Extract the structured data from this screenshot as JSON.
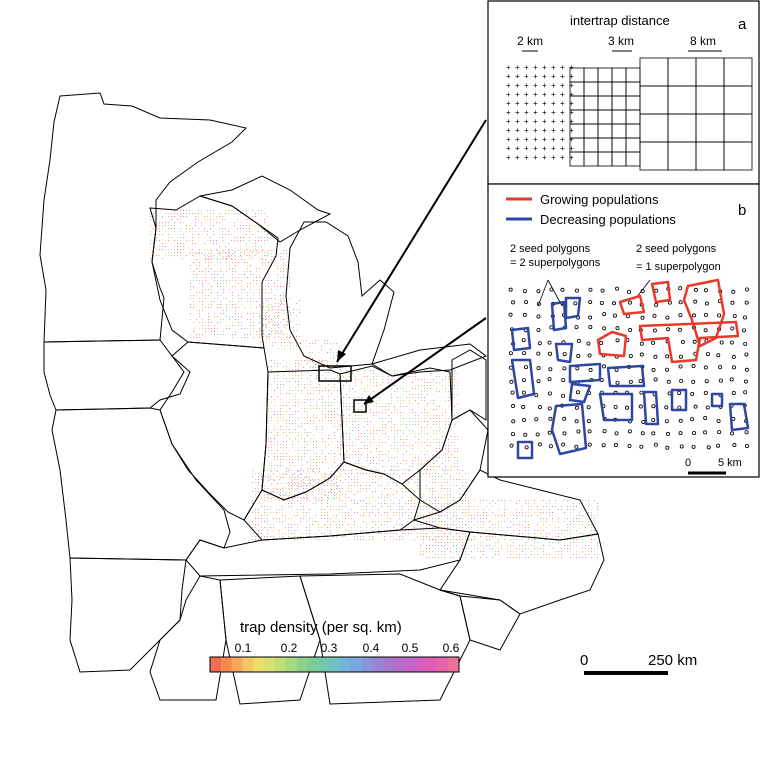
{
  "legend": {
    "title": "trap density (per sq. km)",
    "ticks": [
      "0.1",
      "0.2",
      "0.3",
      "0.4",
      "0.5",
      "0.6"
    ],
    "colors": [
      "#f26d4f",
      "#f58a52",
      "#f5a95a",
      "#f4c765",
      "#eedd6a",
      "#d7e070",
      "#bede76",
      "#a5d97d",
      "#8fd288",
      "#7ccc97",
      "#74c6ad",
      "#72c0c6",
      "#71b6da",
      "#7aa6e1",
      "#8895dd",
      "#9785d7",
      "#a777d0",
      "#b66ccb",
      "#c564c6",
      "#d35fc1",
      "#df5fb8",
      "#e864a9",
      "#ef6f9b"
    ]
  },
  "scale": {
    "zero": "0",
    "end": "250 km"
  },
  "inset_a": {
    "letter": "a",
    "title": "intertrap distance",
    "distances": [
      "2 km",
      "3 km",
      "8 km"
    ]
  },
  "inset_b": {
    "letter": "b",
    "legend_growing": "Growing populations",
    "legend_decreasing": "Decreasing populations",
    "growing_color": "#e8392a",
    "decreasing_color": "#2f47a3",
    "note_left_1": "2 seed polygons",
    "note_left_2": "= 2 superpolygons",
    "note_right_1": "2 seed polygons",
    "note_right_2": "= 1 superpolygon",
    "scale_zero": "0",
    "scale_end": "5 km"
  }
}
